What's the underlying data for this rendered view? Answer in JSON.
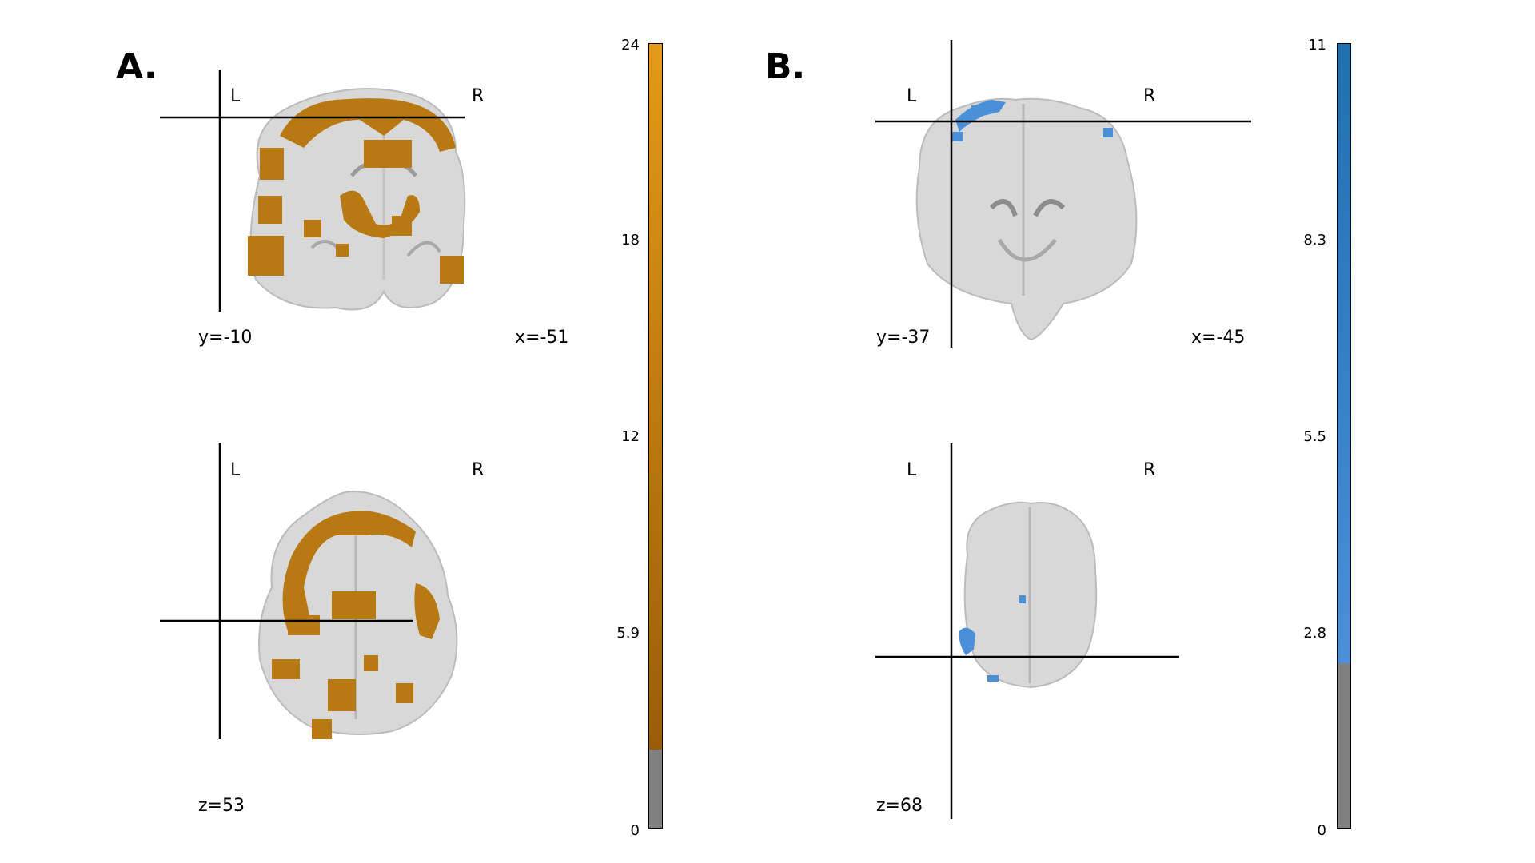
{
  "panels": [
    {
      "letter": "A.",
      "overlay_color": "#b87812",
      "coronal": {
        "left_label": "L",
        "right_label": "R",
        "coord_left": "y=-10",
        "coord_right": "x=-51"
      },
      "axial": {
        "left_label": "L",
        "right_label": "R",
        "coord_left": "z=53"
      },
      "colorbar": {
        "max": "24",
        "t1": "18",
        "t2": "12",
        "t3": "5.9",
        "min": "0",
        "colors": [
          "#e39a18",
          "#9a5c08"
        ],
        "threshold_color": "#808080"
      }
    },
    {
      "letter": "B.",
      "overlay_color": "#4a90d9",
      "coronal": {
        "left_label": "L",
        "right_label": "R",
        "coord_left": "y=-37",
        "coord_right": "x=-45"
      },
      "axial": {
        "left_label": "L",
        "right_label": "R",
        "coord_left": "z=68"
      },
      "colorbar": {
        "max": "11",
        "t1": "8.3",
        "t2": "5.5",
        "t3": "2.8",
        "min": "0",
        "colors": [
          "#1f6fae",
          "#4a90d9"
        ],
        "threshold_color": "#808080"
      }
    }
  ]
}
